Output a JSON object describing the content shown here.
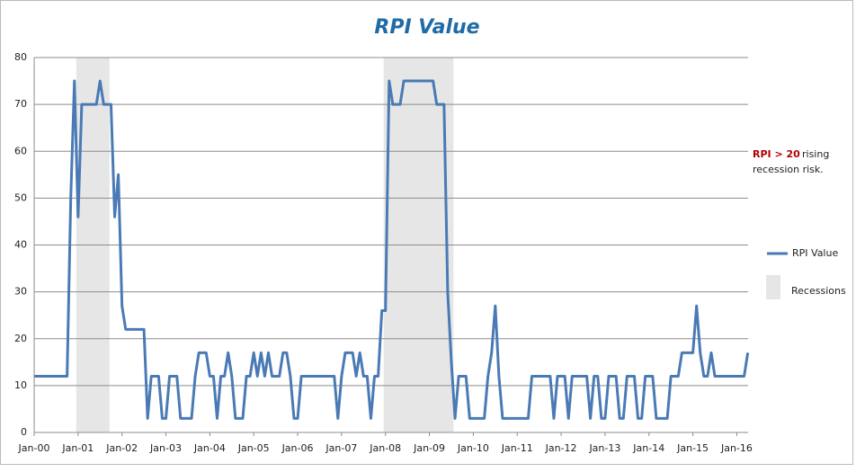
{
  "chart_data": {
    "type": "line",
    "title": "RPI Value",
    "categories": [
      "Jan-00",
      null,
      null,
      null,
      null,
      null,
      null,
      null,
      null,
      null,
      null,
      null,
      "Jan-01",
      null,
      null,
      null,
      null,
      null,
      null,
      null,
      null,
      null,
      null,
      null,
      "Jan-02",
      null,
      null,
      null,
      null,
      null,
      null,
      null,
      null,
      null,
      null,
      null,
      "Jan-03",
      null,
      null,
      null,
      null,
      null,
      null,
      null,
      null,
      null,
      null,
      null,
      "Jan-04",
      null,
      null,
      null,
      null,
      null,
      null,
      null,
      null,
      null,
      null,
      null,
      "Jan-05",
      null,
      null,
      null,
      null,
      null,
      null,
      null,
      null,
      null,
      null,
      null,
      "Jan-06",
      null,
      null,
      null,
      null,
      null,
      null,
      null,
      null,
      null,
      null,
      null,
      "Jan-07",
      null,
      null,
      null,
      null,
      null,
      null,
      null,
      null,
      null,
      null,
      null,
      "Jan-08",
      null,
      null,
      null,
      null,
      null,
      null,
      null,
      null,
      null,
      null,
      null,
      "Jan-09",
      null,
      null,
      null,
      null,
      null,
      null,
      null,
      null,
      null,
      null,
      null,
      "Jan-10",
      null,
      null,
      null,
      null,
      null,
      null,
      null,
      null,
      null,
      null,
      null,
      "Jan-11",
      null,
      null,
      null,
      null,
      null,
      null,
      null,
      null,
      null,
      null,
      null,
      "Jan-12",
      null,
      null,
      null,
      null,
      null,
      null,
      null,
      null,
      null,
      null,
      null,
      "Jan-13",
      null,
      null,
      null,
      null,
      null,
      null,
      null,
      null,
      null,
      null,
      null,
      "Jan-14",
      null,
      null,
      null,
      null,
      null,
      null,
      null,
      null,
      null,
      null,
      null,
      "Jan-15",
      null,
      null,
      null,
      null,
      null,
      null,
      null,
      null,
      null,
      null,
      null,
      "Jan-16",
      null,
      null,
      null
    ],
    "series": [
      {
        "name": "RPI Value",
        "color": "#4a7ab5",
        "values": [
          12,
          12,
          12,
          12,
          12,
          12,
          12,
          12,
          12,
          12,
          50,
          75,
          46,
          70,
          70,
          70,
          70,
          70,
          75,
          70,
          70,
          70,
          46,
          55,
          27,
          22,
          22,
          22,
          22,
          22,
          22,
          3,
          12,
          12,
          12,
          3,
          3,
          12,
          12,
          12,
          3,
          3,
          3,
          3,
          12,
          17,
          17,
          17,
          12,
          12,
          3,
          12,
          12,
          17,
          12,
          3,
          3,
          3,
          12,
          12,
          17,
          12,
          17,
          12,
          17,
          12,
          12,
          12,
          17,
          17,
          12,
          3,
          3,
          12,
          12,
          12,
          12,
          12,
          12,
          12,
          12,
          12,
          12,
          3,
          12,
          17,
          17,
          17,
          12,
          17,
          12,
          12,
          3,
          12,
          12,
          26,
          26,
          75,
          70,
          70,
          70,
          75,
          75,
          75,
          75,
          75,
          75,
          75,
          75,
          75,
          70,
          70,
          70,
          30,
          15,
          3,
          12,
          12,
          12,
          3,
          3,
          3,
          3,
          3,
          12,
          17,
          27,
          12,
          3,
          3,
          3,
          3,
          3,
          3,
          3,
          3,
          12,
          12,
          12,
          12,
          12,
          12,
          3,
          12,
          12,
          12,
          3,
          12,
          12,
          12,
          12,
          12,
          3,
          12,
          12,
          3,
          3,
          12,
          12,
          12,
          3,
          3,
          12,
          12,
          12,
          3,
          3,
          12,
          12,
          12,
          3,
          3,
          3,
          3,
          12,
          12,
          12,
          17,
          17,
          17,
          17,
          27,
          17,
          12,
          12,
          17,
          12,
          12,
          12,
          12,
          12,
          12,
          12,
          12,
          12,
          17
        ]
      },
      {
        "name": "Recessions",
        "color": "#e6e6e6",
        "values": [
          null,
          null,
          null,
          null,
          null,
          null,
          null,
          null,
          null,
          null,
          null,
          null,
          80,
          80,
          80,
          80,
          80,
          80,
          80,
          80,
          80,
          null,
          null,
          null,
          null,
          null,
          null,
          null,
          null,
          null,
          null,
          null,
          null,
          null,
          null,
          null,
          null,
          null,
          null,
          null,
          null,
          null,
          null,
          null,
          null,
          null,
          null,
          null,
          null,
          null,
          null,
          null,
          null,
          null,
          null,
          null,
          null,
          null,
          null,
          null,
          null,
          null,
          null,
          null,
          null,
          null,
          null,
          null,
          null,
          null,
          null,
          null,
          null,
          null,
          null,
          null,
          null,
          null,
          null,
          null,
          null,
          null,
          null,
          null,
          null,
          null,
          null,
          null,
          null,
          null,
          null,
          null,
          null,
          null,
          null,
          null,
          80,
          80,
          80,
          80,
          80,
          80,
          80,
          80,
          80,
          80,
          80,
          80,
          80,
          80,
          80,
          80,
          80,
          80,
          80,
          null,
          null,
          null,
          null,
          null,
          null,
          null,
          null,
          null,
          null,
          null,
          null,
          null,
          null,
          null,
          null,
          null,
          null,
          null,
          null,
          null,
          null,
          null,
          null,
          null,
          null,
          null,
          null,
          null,
          null,
          null,
          null,
          null,
          null,
          null,
          null,
          null,
          null,
          null,
          null,
          null,
          null,
          null,
          null,
          null,
          null,
          null,
          null,
          null,
          null,
          null,
          null,
          null,
          null,
          null,
          null,
          null,
          null,
          null,
          null,
          null,
          null,
          null,
          null,
          null,
          null,
          null,
          null,
          null,
          null,
          null,
          null,
          null,
          null,
          null,
          null,
          null,
          null,
          null,
          null,
          null
        ]
      }
    ],
    "ylim": [
      0,
      80
    ],
    "yticks": [
      0,
      10,
      20,
      30,
      40,
      50,
      60,
      70,
      80
    ],
    "grid": true,
    "annotation": [
      "RPI > 20",
      "rising",
      "recession risk."
    ],
    "legend": "right"
  }
}
